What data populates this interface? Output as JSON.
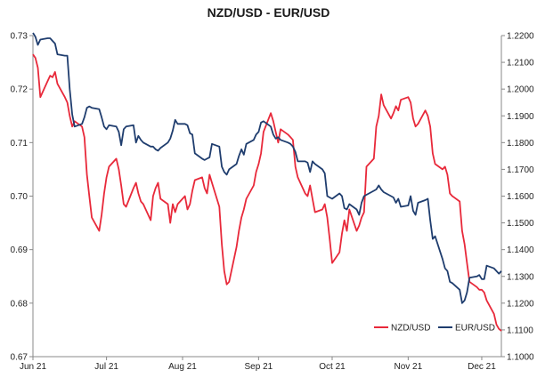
{
  "chart_data": {
    "type": "line",
    "title": "NZD/USD - EUR/USD",
    "xlabel": "",
    "ylabel": "",
    "x_range": [
      "2021-06-01",
      "2021-12-09"
    ],
    "x_ticks": [
      {
        "date": "2021-06-01",
        "label": "Jun 21"
      },
      {
        "date": "2021-07-01",
        "label": "Jul 21"
      },
      {
        "date": "2021-08-01",
        "label": "Aug 21"
      },
      {
        "date": "2021-09-01",
        "label": "Sep 21"
      },
      {
        "date": "2021-10-01",
        "label": "Oct 21"
      },
      {
        "date": "2021-11-01",
        "label": "Nov 21"
      },
      {
        "date": "2021-12-01",
        "label": "Dec 21"
      }
    ],
    "y_left": {
      "min": 0.67,
      "max": 0.73,
      "ticks": [
        "0.67",
        "0.68",
        "0.69",
        "0.70",
        "0.71",
        "0.72",
        "0.73"
      ]
    },
    "y_right": {
      "min": 1.1,
      "max": 1.22,
      "ticks": [
        "1.1000",
        "1.1100",
        "1.1200",
        "1.1300",
        "1.1400",
        "1.1500",
        "1.1600",
        "1.1700",
        "1.1800",
        "1.1900",
        "1.2000",
        "1.2100",
        "1.2200"
      ]
    },
    "grid": false,
    "legend_position": "bottom-right",
    "series": [
      {
        "name": "NZD/USD",
        "axis": "left",
        "color": "#e8293a",
        "x": [
          "2021-06-01",
          "2021-06-02",
          "2021-06-03",
          "2021-06-04",
          "2021-06-07",
          "2021-06-08",
          "2021-06-09",
          "2021-06-10",
          "2021-06-11",
          "2021-06-14",
          "2021-06-15",
          "2021-06-16",
          "2021-06-17",
          "2021-06-18",
          "2021-06-21",
          "2021-06-22",
          "2021-06-23",
          "2021-06-24",
          "2021-06-25",
          "2021-06-28",
          "2021-06-29",
          "2021-06-30",
          "2021-07-01",
          "2021-07-02",
          "2021-07-05",
          "2021-07-06",
          "2021-07-07",
          "2021-07-08",
          "2021-07-09",
          "2021-07-12",
          "2021-07-13",
          "2021-07-14",
          "2021-07-15",
          "2021-07-16",
          "2021-07-19",
          "2021-07-20",
          "2021-07-21",
          "2021-07-22",
          "2021-07-23",
          "2021-07-26",
          "2021-07-27",
          "2021-07-28",
          "2021-07-29",
          "2021-07-30",
          "2021-08-02",
          "2021-08-03",
          "2021-08-04",
          "2021-08-05",
          "2021-08-06",
          "2021-08-09",
          "2021-08-10",
          "2021-08-11",
          "2021-08-12",
          "2021-08-13",
          "2021-08-16",
          "2021-08-17",
          "2021-08-18",
          "2021-08-19",
          "2021-08-20",
          "2021-08-23",
          "2021-08-24",
          "2021-08-25",
          "2021-08-26",
          "2021-08-27",
          "2021-08-30",
          "2021-08-31",
          "2021-09-01",
          "2021-09-02",
          "2021-09-03",
          "2021-09-06",
          "2021-09-07",
          "2021-09-08",
          "2021-09-09",
          "2021-09-10",
          "2021-09-13",
          "2021-09-14",
          "2021-09-15",
          "2021-09-16",
          "2021-09-17",
          "2021-09-20",
          "2021-09-21",
          "2021-09-22",
          "2021-09-23",
          "2021-09-24",
          "2021-09-27",
          "2021-09-28",
          "2021-09-29",
          "2021-09-30",
          "2021-10-01",
          "2021-10-04",
          "2021-10-05",
          "2021-10-06",
          "2021-10-07",
          "2021-10-08",
          "2021-10-11",
          "2021-10-12",
          "2021-10-13",
          "2021-10-14",
          "2021-10-15",
          "2021-10-18",
          "2021-10-19",
          "2021-10-20",
          "2021-10-21",
          "2021-10-22",
          "2021-10-25",
          "2021-10-26",
          "2021-10-27",
          "2021-10-28",
          "2021-10-29",
          "2021-11-01",
          "2021-11-02",
          "2021-11-03",
          "2021-11-04",
          "2021-11-05",
          "2021-11-08",
          "2021-11-09",
          "2021-11-10",
          "2021-11-11",
          "2021-11-12",
          "2021-11-15",
          "2021-11-16",
          "2021-11-17",
          "2021-11-18",
          "2021-11-19",
          "2021-11-22",
          "2021-11-23",
          "2021-11-24",
          "2021-11-25",
          "2021-11-26",
          "2021-11-29",
          "2021-11-30",
          "2021-12-01",
          "2021-12-02",
          "2021-12-03",
          "2021-12-06",
          "2021-12-07",
          "2021-12-08",
          "2021-12-09"
        ],
        "values": [
          0.7265,
          0.7258,
          0.724,
          0.7185,
          0.7215,
          0.7225,
          0.7222,
          0.7232,
          0.721,
          0.7185,
          0.7175,
          0.715,
          0.713,
          0.714,
          0.713,
          0.711,
          0.704,
          0.7,
          0.696,
          0.6935,
          0.6965,
          0.7005,
          0.7035,
          0.7055,
          0.707,
          0.705,
          0.702,
          0.6985,
          0.698,
          0.7015,
          0.7025,
          0.7005,
          0.699,
          0.6985,
          0.6955,
          0.7,
          0.7015,
          0.7025,
          0.6995,
          0.6985,
          0.695,
          0.6985,
          0.697,
          0.6985,
          0.7,
          0.6975,
          0.6985,
          0.701,
          0.703,
          0.7035,
          0.7015,
          0.7005,
          0.704,
          0.7025,
          0.698,
          0.691,
          0.686,
          0.6835,
          0.684,
          0.6905,
          0.6935,
          0.696,
          0.6975,
          0.6995,
          0.702,
          0.7045,
          0.706,
          0.708,
          0.712,
          0.7155,
          0.714,
          0.712,
          0.71,
          0.7125,
          0.7115,
          0.711,
          0.7105,
          0.7055,
          0.7035,
          0.7005,
          0.7,
          0.702,
          0.6995,
          0.697,
          0.6975,
          0.6985,
          0.696,
          0.692,
          0.6875,
          0.6895,
          0.693,
          0.6955,
          0.6935,
          0.6975,
          0.6935,
          0.6945,
          0.696,
          0.697,
          0.7055,
          0.707,
          0.713,
          0.715,
          0.719,
          0.717,
          0.7145,
          0.7155,
          0.7168,
          0.716,
          0.718,
          0.7185,
          0.7175,
          0.7145,
          0.713,
          0.7135,
          0.716,
          0.715,
          0.713,
          0.708,
          0.706,
          0.705,
          0.7055,
          0.704,
          0.7005,
          0.7,
          0.699,
          0.6935,
          0.691,
          0.6875,
          0.684,
          0.683,
          0.6825,
          0.6825,
          0.682,
          0.6805,
          0.678,
          0.676,
          0.6752,
          0.6748
        ],
        "note_left_axis": "0.7300 line peaks near 0.7300 at start"
      },
      {
        "name": "EUR/USD",
        "axis": "right",
        "color": "#1f3d6e",
        "x": [
          "2021-06-01",
          "2021-06-02",
          "2021-06-03",
          "2021-06-04",
          "2021-06-07",
          "2021-06-08",
          "2021-06-09",
          "2021-06-10",
          "2021-06-11",
          "2021-06-14",
          "2021-06-15",
          "2021-06-16",
          "2021-06-17",
          "2021-06-18",
          "2021-06-21",
          "2021-06-22",
          "2021-06-23",
          "2021-06-24",
          "2021-06-25",
          "2021-06-28",
          "2021-06-29",
          "2021-06-30",
          "2021-07-01",
          "2021-07-02",
          "2021-07-05",
          "2021-07-06",
          "2021-07-07",
          "2021-07-08",
          "2021-07-09",
          "2021-07-12",
          "2021-07-13",
          "2021-07-14",
          "2021-07-15",
          "2021-07-16",
          "2021-07-19",
          "2021-07-20",
          "2021-07-21",
          "2021-07-22",
          "2021-07-23",
          "2021-07-26",
          "2021-07-27",
          "2021-07-28",
          "2021-07-29",
          "2021-07-30",
          "2021-08-02",
          "2021-08-03",
          "2021-08-04",
          "2021-08-05",
          "2021-08-06",
          "2021-08-09",
          "2021-08-10",
          "2021-08-11",
          "2021-08-12",
          "2021-08-13",
          "2021-08-16",
          "2021-08-17",
          "2021-08-18",
          "2021-08-19",
          "2021-08-20",
          "2021-08-23",
          "2021-08-24",
          "2021-08-25",
          "2021-08-26",
          "2021-08-27",
          "2021-08-30",
          "2021-08-31",
          "2021-09-01",
          "2021-09-02",
          "2021-09-03",
          "2021-09-06",
          "2021-09-07",
          "2021-09-08",
          "2021-09-09",
          "2021-09-10",
          "2021-09-13",
          "2021-09-14",
          "2021-09-15",
          "2021-09-16",
          "2021-09-17",
          "2021-09-20",
          "2021-09-21",
          "2021-09-22",
          "2021-09-23",
          "2021-09-24",
          "2021-09-27",
          "2021-09-28",
          "2021-09-29",
          "2021-09-30",
          "2021-10-01",
          "2021-10-04",
          "2021-10-05",
          "2021-10-06",
          "2021-10-07",
          "2021-10-08",
          "2021-10-11",
          "2021-10-12",
          "2021-10-13",
          "2021-10-14",
          "2021-10-15",
          "2021-10-18",
          "2021-10-19",
          "2021-10-20",
          "2021-10-21",
          "2021-10-22",
          "2021-10-25",
          "2021-10-26",
          "2021-10-27",
          "2021-10-28",
          "2021-10-29",
          "2021-11-01",
          "2021-11-02",
          "2021-11-03",
          "2021-11-04",
          "2021-11-05",
          "2021-11-08",
          "2021-11-09",
          "2021-11-10",
          "2021-11-11",
          "2021-11-12",
          "2021-11-15",
          "2021-11-16",
          "2021-11-17",
          "2021-11-18",
          "2021-11-19",
          "2021-11-22",
          "2021-11-23",
          "2021-11-24",
          "2021-11-25",
          "2021-11-26",
          "2021-11-29",
          "2021-11-30",
          "2021-12-01",
          "2021-12-02",
          "2021-12-03",
          "2021-12-06",
          "2021-12-07",
          "2021-12-08",
          "2021-12-09"
        ],
        "values": [
          1.221,
          1.2195,
          1.2165,
          1.2185,
          1.219,
          1.219,
          1.218,
          1.217,
          1.213,
          1.2125,
          1.2125,
          1.2,
          1.1905,
          1.186,
          1.187,
          1.1895,
          1.193,
          1.1935,
          1.193,
          1.1925,
          1.1895,
          1.186,
          1.185,
          1.1865,
          1.186,
          1.184,
          1.179,
          1.185,
          1.186,
          1.1865,
          1.18,
          1.1825,
          1.181,
          1.18,
          1.1785,
          1.1785,
          1.1775,
          1.177,
          1.178,
          1.18,
          1.1815,
          1.1845,
          1.1885,
          1.187,
          1.187,
          1.1865,
          1.1835,
          1.183,
          1.176,
          1.174,
          1.1735,
          1.174,
          1.1745,
          1.1795,
          1.1785,
          1.171,
          1.169,
          1.168,
          1.17,
          1.172,
          1.175,
          1.1775,
          1.1755,
          1.1795,
          1.181,
          1.183,
          1.184,
          1.1875,
          1.188,
          1.186,
          1.183,
          1.1815,
          1.182,
          1.181,
          1.18,
          1.1795,
          1.1785,
          1.1765,
          1.173,
          1.173,
          1.1725,
          1.169,
          1.173,
          1.172,
          1.17,
          1.1685,
          1.16,
          1.1595,
          1.159,
          1.161,
          1.16,
          1.1555,
          1.155,
          1.157,
          1.155,
          1.153,
          1.1575,
          1.16,
          1.1605,
          1.162,
          1.1625,
          1.164,
          1.1625,
          1.1615,
          1.16,
          1.1595,
          1.1575,
          1.159,
          1.156,
          1.1565,
          1.16,
          1.1545,
          1.153,
          1.1575,
          1.1585,
          1.159,
          1.151,
          1.144,
          1.145,
          1.1365,
          1.133,
          1.132,
          1.128,
          1.1275,
          1.125,
          1.12,
          1.121,
          1.124,
          1.1295,
          1.13,
          1.1305,
          1.129,
          1.129,
          1.134,
          1.133,
          1.132,
          1.131,
          1.132
        ]
      }
    ]
  }
}
